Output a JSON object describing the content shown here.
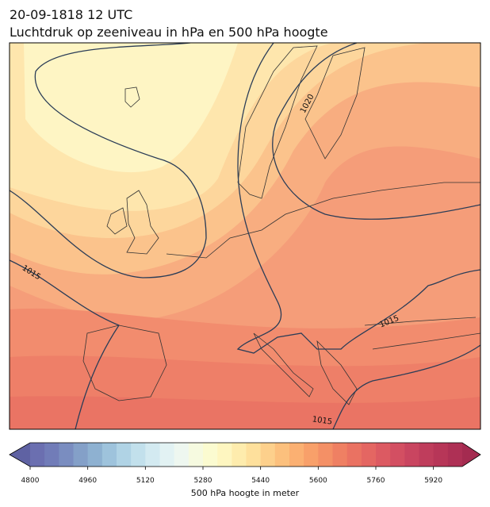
{
  "header": {
    "title": "20-09-1818 12 UTC",
    "subtitle": "Luchtdruk op zeeniveau in hPa en 500 hPa hoogte"
  },
  "map": {
    "contour_labels": [
      "1020",
      "1015",
      "1015",
      "1015"
    ]
  },
  "colorbar": {
    "label": "500 hPa hoogte in meter",
    "lim": [
      4800,
      6000
    ],
    "ticks": [
      4800,
      4960,
      5120,
      5280,
      5440,
      5600,
      5760,
      5920
    ],
    "under_color": "#5f62a3",
    "over_color": "#a42b50",
    "colors": [
      "#6b6fb0",
      "#717cb8",
      "#7a8dc0",
      "#84a0c8",
      "#8eb1d1",
      "#9ec3dc",
      "#b0d3e5",
      "#c2e0ec",
      "#d3eaf1",
      "#e2f2f3",
      "#eef7f0",
      "#f6fae0",
      "#fbfbd0",
      "#fef6c0",
      "#feecad",
      "#fee09c",
      "#fdd08c",
      "#fcc07d",
      "#fbb072",
      "#f8a06a",
      "#f49066",
      "#ef8063",
      "#ea7262",
      "#e46662",
      "#dc5a62",
      "#d34f62",
      "#c94560",
      "#bf3d5c",
      "#b73658",
      "#ae3055"
    ]
  }
}
